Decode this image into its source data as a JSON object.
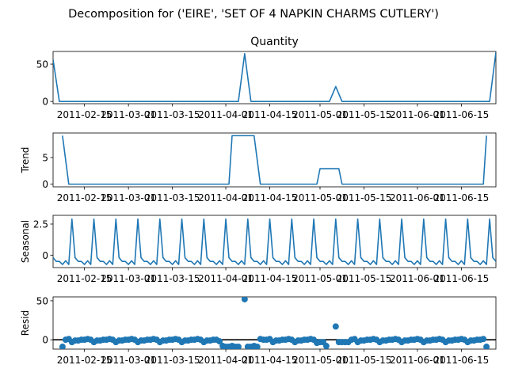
{
  "figure": {
    "suptitle": "Decomposition for ('EIRE', 'SET OF 4 NAPKIN CHARMS CUTLERY')"
  },
  "colors": {
    "series": "#1f77b4",
    "axis": "#000000",
    "zero_line": "#000000"
  },
  "chart_data": [
    {
      "type": "line",
      "title": "Quantity",
      "ylabel": "",
      "xlabel": "",
      "x_range": [
        "2011-02-05",
        "2011-06-26"
      ],
      "ylim": [
        -3,
        67
      ],
      "yticks": [
        0,
        50
      ],
      "xticks": [
        "2011-02-15",
        "2011-03-01",
        "2011-03-15",
        "2011-04-01",
        "2011-04-15",
        "2011-05-01",
        "2011-05-15",
        "2011-06-01",
        "2011-06-15"
      ],
      "grid": false,
      "points": [
        [
          "2011-02-05",
          56
        ],
        [
          "2011-02-07",
          0
        ],
        [
          "2011-04-05",
          0
        ],
        [
          "2011-04-07",
          64
        ],
        [
          "2011-04-09",
          0
        ],
        [
          "2011-05-04",
          0
        ],
        [
          "2011-05-06",
          20
        ],
        [
          "2011-05-08",
          0
        ],
        [
          "2011-06-24",
          0
        ],
        [
          "2011-06-26",
          66
        ]
      ]
    },
    {
      "type": "line",
      "title": "",
      "ylabel": "Trend",
      "xlabel": "",
      "x_range": [
        "2011-02-05",
        "2011-06-26"
      ],
      "ylim": [
        -0.5,
        9.6
      ],
      "yticks": [
        0,
        5
      ],
      "xticks": [
        "2011-02-15",
        "2011-03-01",
        "2011-03-15",
        "2011-04-01",
        "2011-04-15",
        "2011-05-01",
        "2011-05-15",
        "2011-06-01",
        "2011-06-15"
      ],
      "grid": false,
      "points": [
        [
          "2011-02-08",
          9.1
        ],
        [
          "2011-02-10",
          0
        ],
        [
          "2011-04-02",
          0
        ],
        [
          "2011-04-03",
          9.1
        ],
        [
          "2011-04-10",
          9.1
        ],
        [
          "2011-04-12",
          0
        ],
        [
          "2011-04-30",
          0
        ],
        [
          "2011-05-01",
          2.9
        ],
        [
          "2011-05-07",
          2.9
        ],
        [
          "2011-05-08",
          0
        ],
        [
          "2011-06-22",
          0
        ],
        [
          "2011-06-23",
          9.1
        ]
      ]
    },
    {
      "type": "line",
      "title": "",
      "ylabel": "Seasonal",
      "xlabel": "",
      "x_range": [
        "2011-02-05",
        "2011-06-26"
      ],
      "ylim": [
        -1.0,
        3.2
      ],
      "yticks": [
        0.0,
        2.5
      ],
      "xticks": [
        "2011-02-15",
        "2011-03-01",
        "2011-03-15",
        "2011-04-01",
        "2011-04-15",
        "2011-05-01",
        "2011-05-15",
        "2011-06-01",
        "2011-06-15"
      ],
      "grid": false,
      "period_days": 7,
      "cycle_values": [
        -0.2,
        -0.5,
        -0.5,
        -0.75,
        -0.45,
        -0.75,
        2.9
      ],
      "first_peak": "2011-02-11"
    },
    {
      "type": "scatter",
      "title": "",
      "ylabel": "Resid",
      "xlabel": "",
      "x_range": [
        "2011-02-05",
        "2011-06-26"
      ],
      "ylim": [
        -12,
        55
      ],
      "yticks": [
        0,
        50
      ],
      "xticks": [
        "2011-02-15",
        "2011-03-01",
        "2011-03-15",
        "2011-04-01",
        "2011-04-15",
        "2011-05-01",
        "2011-05-15",
        "2011-06-01",
        "2011-06-15"
      ],
      "grid": false,
      "zero_line": true,
      "points": [
        [
          "2011-02-08",
          -9
        ],
        [
          "2011-02-09",
          0
        ],
        [
          "2011-02-10",
          1
        ],
        [
          "2011-02-11",
          -3
        ],
        [
          "2011-02-12",
          -1
        ],
        [
          "2011-02-13",
          -1
        ],
        [
          "2011-02-14",
          0
        ],
        [
          "2011-02-15",
          0
        ],
        [
          "2011-02-16",
          1
        ],
        [
          "2011-02-17",
          0
        ],
        [
          "2011-02-18",
          -3
        ],
        [
          "2011-02-19",
          -1
        ],
        [
          "2011-02-20",
          -1
        ],
        [
          "2011-02-21",
          0
        ],
        [
          "2011-02-22",
          0
        ],
        [
          "2011-02-23",
          1
        ],
        [
          "2011-02-24",
          0
        ],
        [
          "2011-02-25",
          -3
        ],
        [
          "2011-02-26",
          -1
        ],
        [
          "2011-02-27",
          -1
        ],
        [
          "2011-02-28",
          0
        ],
        [
          "2011-03-01",
          0
        ],
        [
          "2011-03-02",
          1
        ],
        [
          "2011-03-03",
          0
        ],
        [
          "2011-03-04",
          -3
        ],
        [
          "2011-03-05",
          -1
        ],
        [
          "2011-03-06",
          -1
        ],
        [
          "2011-03-07",
          0
        ],
        [
          "2011-03-08",
          0
        ],
        [
          "2011-03-09",
          1
        ],
        [
          "2011-03-10",
          0
        ],
        [
          "2011-03-11",
          -3
        ],
        [
          "2011-03-12",
          -1
        ],
        [
          "2011-03-13",
          -1
        ],
        [
          "2011-03-14",
          0
        ],
        [
          "2011-03-15",
          0
        ],
        [
          "2011-03-16",
          1
        ],
        [
          "2011-03-17",
          0
        ],
        [
          "2011-03-18",
          -3
        ],
        [
          "2011-03-19",
          -1
        ],
        [
          "2011-03-20",
          -1
        ],
        [
          "2011-03-21",
          0
        ],
        [
          "2011-03-22",
          0
        ],
        [
          "2011-03-23",
          1
        ],
        [
          "2011-03-24",
          0
        ],
        [
          "2011-03-25",
          -3
        ],
        [
          "2011-03-26",
          -1
        ],
        [
          "2011-03-27",
          -1
        ],
        [
          "2011-03-28",
          0
        ],
        [
          "2011-03-29",
          0
        ],
        [
          "2011-03-30",
          -2
        ],
        [
          "2011-03-31",
          -8
        ],
        [
          "2011-04-01",
          -9
        ],
        [
          "2011-04-02",
          -9
        ],
        [
          "2011-04-03",
          -8
        ],
        [
          "2011-04-04",
          -9
        ],
        [
          "2011-04-05",
          -9
        ],
        [
          "2011-04-07",
          52
        ],
        [
          "2011-04-08",
          -9
        ],
        [
          "2011-04-09",
          -9
        ],
        [
          "2011-04-10",
          -8
        ],
        [
          "2011-04-11",
          -9
        ],
        [
          "2011-04-12",
          1
        ],
        [
          "2011-04-13",
          0
        ],
        [
          "2011-04-14",
          0
        ],
        [
          "2011-04-15",
          1
        ],
        [
          "2011-04-16",
          -3
        ],
        [
          "2011-04-17",
          -1
        ],
        [
          "2011-04-18",
          -1
        ],
        [
          "2011-04-19",
          0
        ],
        [
          "2011-04-20",
          0
        ],
        [
          "2011-04-21",
          1
        ],
        [
          "2011-04-22",
          0
        ],
        [
          "2011-04-23",
          -3
        ],
        [
          "2011-04-24",
          -1
        ],
        [
          "2011-04-25",
          -1
        ],
        [
          "2011-04-26",
          0
        ],
        [
          "2011-04-27",
          0
        ],
        [
          "2011-04-28",
          1
        ],
        [
          "2011-04-29",
          0
        ],
        [
          "2011-04-30",
          -4
        ],
        [
          "2011-05-01",
          -3
        ],
        [
          "2011-05-02",
          -3
        ],
        [
          "2011-05-03",
          -8
        ],
        [
          "2011-05-06",
          17
        ],
        [
          "2011-05-07",
          -3
        ],
        [
          "2011-05-08",
          -3
        ],
        [
          "2011-05-09",
          -3
        ],
        [
          "2011-05-10",
          -3
        ],
        [
          "2011-05-11",
          0
        ],
        [
          "2011-05-12",
          1
        ],
        [
          "2011-05-13",
          -3
        ],
        [
          "2011-05-14",
          -1
        ],
        [
          "2011-05-15",
          -1
        ],
        [
          "2011-05-16",
          0
        ],
        [
          "2011-05-17",
          0
        ],
        [
          "2011-05-18",
          1
        ],
        [
          "2011-05-19",
          0
        ],
        [
          "2011-05-20",
          -3
        ],
        [
          "2011-05-21",
          -1
        ],
        [
          "2011-05-22",
          -1
        ],
        [
          "2011-05-23",
          0
        ],
        [
          "2011-05-24",
          0
        ],
        [
          "2011-05-25",
          1
        ],
        [
          "2011-05-26",
          0
        ],
        [
          "2011-05-27",
          -3
        ],
        [
          "2011-05-28",
          -1
        ],
        [
          "2011-05-29",
          -1
        ],
        [
          "2011-05-30",
          0
        ],
        [
          "2011-05-31",
          0
        ],
        [
          "2011-06-01",
          1
        ],
        [
          "2011-06-02",
          0
        ],
        [
          "2011-06-03",
          -3
        ],
        [
          "2011-06-04",
          -1
        ],
        [
          "2011-06-05",
          -1
        ],
        [
          "2011-06-06",
          0
        ],
        [
          "2011-06-07",
          0
        ],
        [
          "2011-06-08",
          1
        ],
        [
          "2011-06-09",
          0
        ],
        [
          "2011-06-10",
          -3
        ],
        [
          "2011-06-11",
          -1
        ],
        [
          "2011-06-12",
          -1
        ],
        [
          "2011-06-13",
          0
        ],
        [
          "2011-06-14",
          0
        ],
        [
          "2011-06-15",
          1
        ],
        [
          "2011-06-16",
          0
        ],
        [
          "2011-06-17",
          -3
        ],
        [
          "2011-06-18",
          -1
        ],
        [
          "2011-06-19",
          -1
        ],
        [
          "2011-06-20",
          0
        ],
        [
          "2011-06-21",
          0
        ],
        [
          "2011-06-22",
          1
        ],
        [
          "2011-06-23",
          -9
        ]
      ]
    }
  ]
}
